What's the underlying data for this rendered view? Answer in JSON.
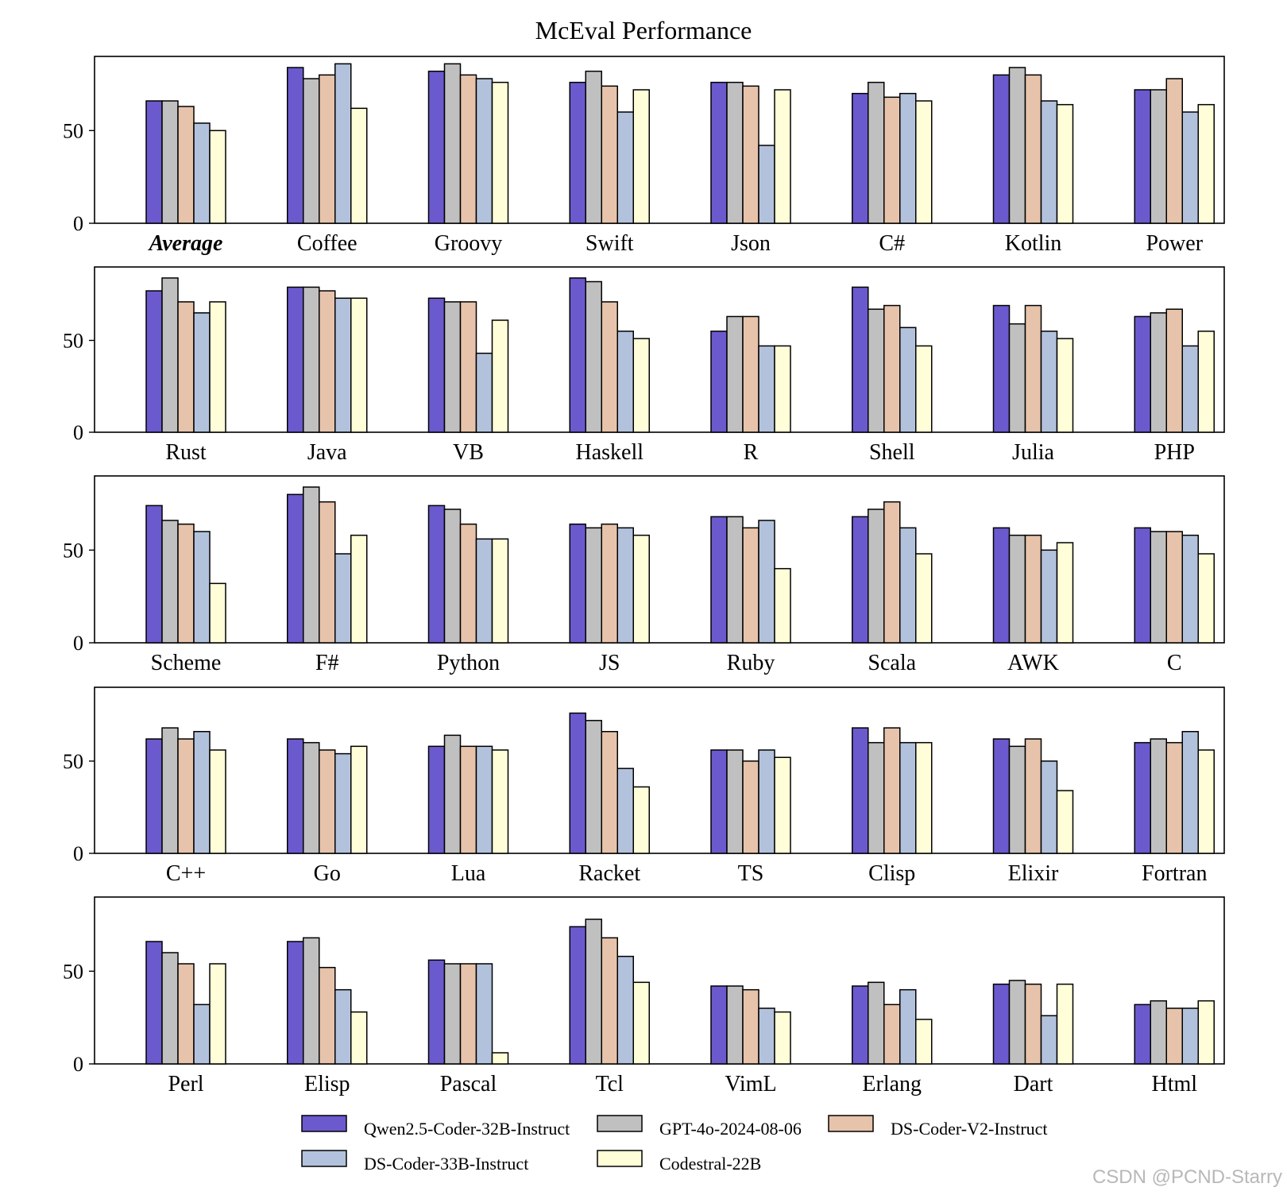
{
  "chart_data": {
    "type": "bar",
    "title": "McEval Performance",
    "ylim": [
      0,
      90
    ],
    "yticks": [
      0,
      50
    ],
    "series": [
      {
        "name": "Qwen2.5-Coder-32B-Instruct",
        "color": "#6a5acd"
      },
      {
        "name": "GPT-4o-2024-08-06",
        "color": "#c0c0c0"
      },
      {
        "name": "DS-Coder-V2-Instruct",
        "color": "#e6c3aa"
      },
      {
        "name": "DS-Coder-33B-Instruct",
        "color": "#b3c2dc"
      },
      {
        "name": "Codestral-22B",
        "color": "#fffed8"
      }
    ],
    "panels": [
      {
        "categories": [
          "Average",
          "Coffee",
          "Groovy",
          "Swift",
          "Json",
          "C#",
          "Kotlin",
          "Power"
        ],
        "values": [
          [
            66,
            66,
            63,
            54,
            50
          ],
          [
            84,
            78,
            80,
            86,
            62
          ],
          [
            82,
            86,
            80,
            78,
            76
          ],
          [
            76,
            82,
            74,
            60,
            72
          ],
          [
            76,
            76,
            74,
            42,
            72
          ],
          [
            70,
            76,
            68,
            70,
            66
          ],
          [
            80,
            84,
            80,
            66,
            64
          ],
          [
            72,
            72,
            78,
            60,
            64
          ]
        ]
      },
      {
        "categories": [
          "Rust",
          "Java",
          "VB",
          "Haskell",
          "R",
          "Shell",
          "Julia",
          "PHP"
        ],
        "values": [
          [
            77,
            84,
            71,
            65,
            71
          ],
          [
            79,
            79,
            77,
            73,
            73
          ],
          [
            73,
            71,
            71,
            43,
            61
          ],
          [
            84,
            82,
            71,
            55,
            51
          ],
          [
            55,
            63,
            63,
            47,
            47
          ],
          [
            79,
            67,
            69,
            57,
            47
          ],
          [
            69,
            59,
            69,
            55,
            51
          ],
          [
            63,
            65,
            67,
            47,
            55
          ]
        ]
      },
      {
        "categories": [
          "Scheme",
          "F#",
          "Python",
          "JS",
          "Ruby",
          "Scala",
          "AWK",
          "C"
        ],
        "values": [
          [
            74,
            66,
            64,
            60,
            32
          ],
          [
            80,
            84,
            76,
            48,
            58
          ],
          [
            74,
            72,
            64,
            56,
            56
          ],
          [
            64,
            62,
            64,
            62,
            58
          ],
          [
            68,
            68,
            62,
            66,
            40
          ],
          [
            68,
            72,
            76,
            62,
            48
          ],
          [
            62,
            58,
            58,
            50,
            54
          ],
          [
            62,
            60,
            60,
            58,
            48
          ]
        ]
      },
      {
        "categories": [
          "C++",
          "Go",
          "Lua",
          "Racket",
          "TS",
          "Clisp",
          "Elixir",
          "Fortran"
        ],
        "values": [
          [
            62,
            68,
            62,
            66,
            56
          ],
          [
            62,
            60,
            56,
            54,
            58
          ],
          [
            58,
            64,
            58,
            58,
            56
          ],
          [
            76,
            72,
            66,
            46,
            36
          ],
          [
            56,
            56,
            50,
            56,
            52
          ],
          [
            68,
            60,
            68,
            60,
            60
          ],
          [
            62,
            58,
            62,
            50,
            34
          ],
          [
            60,
            62,
            60,
            66,
            56
          ]
        ]
      },
      {
        "categories": [
          "Perl",
          "Elisp",
          "Pascal",
          "Tcl",
          "VimL",
          "Erlang",
          "Dart",
          "Html"
        ],
        "values": [
          [
            66,
            60,
            54,
            32,
            54
          ],
          [
            66,
            68,
            52,
            40,
            28
          ],
          [
            56,
            54,
            54,
            54,
            6
          ],
          [
            74,
            78,
            68,
            58,
            44
          ],
          [
            42,
            42,
            40,
            30,
            28
          ],
          [
            42,
            44,
            32,
            40,
            24
          ],
          [
            43,
            45,
            43,
            26,
            43
          ],
          [
            32,
            34,
            30,
            30,
            34
          ]
        ]
      }
    ],
    "italic_bold_categories": [
      "Average"
    ],
    "legend": {
      "placement": "bottom-center",
      "columns": 3
    }
  },
  "watermark": "CSDN @PCND-Starry"
}
